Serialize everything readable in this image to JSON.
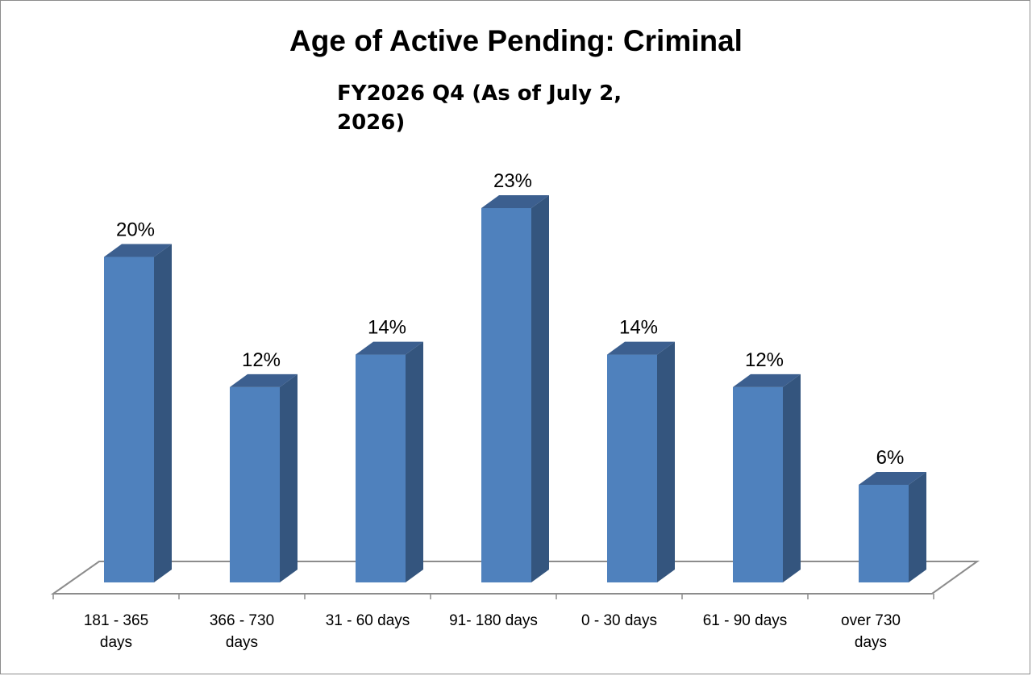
{
  "chart_data": {
    "type": "bar",
    "title": "Age of Active Pending: Criminal",
    "subtitle": "FY2026 Q4 (As of July 2, 2026)",
    "categories": [
      "181 - 365 days",
      "366 - 730 days",
      "31 - 60 days",
      "91- 180 days",
      "0 - 30 days",
      "61 - 90 days",
      "over 730 days"
    ],
    "category_lines": [
      [
        "181 - 365",
        "days"
      ],
      [
        "366 - 730",
        "days"
      ],
      [
        "31 - 60 days"
      ],
      [
        "91- 180 days"
      ],
      [
        "0 - 30 days"
      ],
      [
        "61 - 90 days"
      ],
      [
        "over 730",
        "days"
      ]
    ],
    "values": [
      20,
      12,
      14,
      23,
      14,
      12,
      6
    ],
    "value_labels": [
      "20%",
      "12%",
      "14%",
      "23%",
      "14%",
      "12%",
      "6%"
    ],
    "unit": "%",
    "xlabel": "",
    "ylabel": "",
    "ylim": [
      0,
      23
    ],
    "grid": false,
    "legend": "none",
    "colors": {
      "bar_front": "#4f81bd",
      "bar_side": "#34557e",
      "bar_top": "#3c5f8f",
      "floor_stroke": "#8c8c8c"
    }
  }
}
